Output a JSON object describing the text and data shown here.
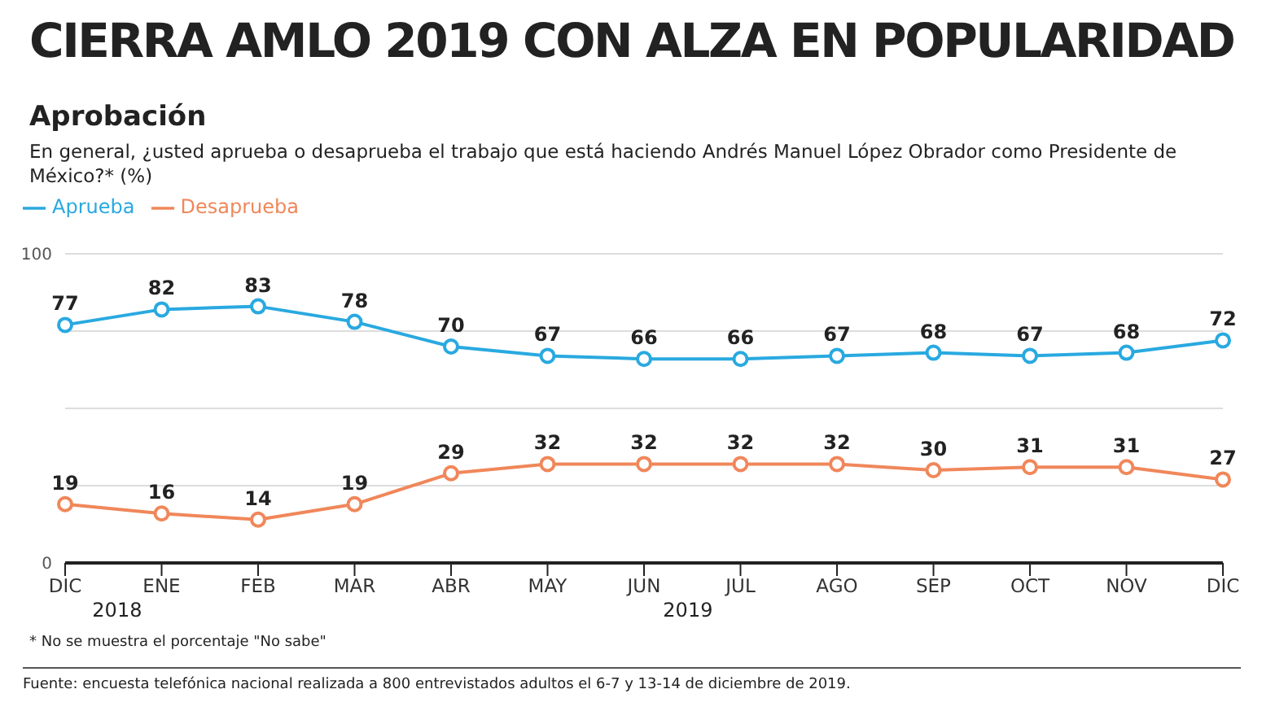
{
  "chart_data": {
    "type": "line",
    "title": "CIERRA AMLO 2019 CON ALZA EN POPULARIDAD",
    "subtitle": "Aprobación",
    "ylabel": "En general, ¿usted aprueba o desaprueba el trabajo que está haciendo Andrés Manuel López Obrador como Presidente de México?*  (%)",
    "categories": [
      "DIC",
      "ENE",
      "FEB",
      "MAR",
      "ABR",
      "MAY",
      "JUN",
      "JUL",
      "AGO",
      "SEP",
      "OCT",
      "NOV",
      "DIC"
    ],
    "series": [
      {
        "name": "Aprueba",
        "color": "#29a9e0",
        "values": [
          77,
          82,
          83,
          78,
          70,
          67,
          66,
          66,
          67,
          68,
          67,
          68,
          72
        ]
      },
      {
        "name": "Desaprueba",
        "color": "#f0875a",
        "values": [
          19,
          16,
          14,
          19,
          29,
          32,
          32,
          32,
          32,
          30,
          31,
          31,
          27
        ]
      }
    ],
    "ylim": [
      0,
      100
    ],
    "yticks": [
      0,
      {
        "value": 25,
        "label": null
      },
      {
        "value": 50,
        "label": null
      },
      {
        "value": 75,
        "label": null
      },
      100
    ],
    "grid": "y",
    "legend": "top left",
    "marker": "circle",
    "line_style": "solid",
    "data_labels": true,
    "annotations": [
      "2018",
      "2019",
      "* No se muestra el porcentaje \"No sabe\"",
      "Fuente: encuesta telefónica nacional realizada a 800 entrevistados adultos el 6-7 y 13-14 de diciembre de 2019."
    ]
  }
}
